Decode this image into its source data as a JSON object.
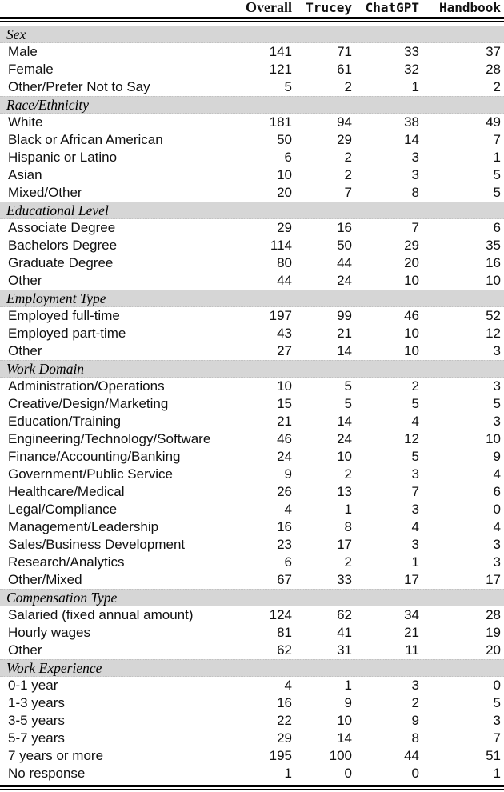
{
  "colors": {
    "band_background": "#d6d6d6",
    "rule_color": "#000000",
    "text_color": "#111111",
    "page_background": "#ffffff"
  },
  "table": {
    "header": {
      "empty_corner": "",
      "columns": [
        "Overall",
        "Trucey",
        "ChatGPT",
        "Handbook"
      ]
    },
    "sections": [
      {
        "label": "Sex",
        "rows": [
          {
            "label": "Male",
            "values": [
              "141",
              "71",
              "33",
              "37"
            ]
          },
          {
            "label": "Female",
            "values": [
              "121",
              "61",
              "32",
              "28"
            ]
          },
          {
            "label": "Other/Prefer Not to Say",
            "values": [
              "5",
              "2",
              "1",
              "2"
            ]
          }
        ]
      },
      {
        "label": "Race/Ethnicity",
        "rows": [
          {
            "label": "White",
            "values": [
              "181",
              "94",
              "38",
              "49"
            ]
          },
          {
            "label": "Black or African American",
            "values": [
              "50",
              "29",
              "14",
              "7"
            ]
          },
          {
            "label": "Hispanic or Latino",
            "values": [
              "6",
              "2",
              "3",
              "1"
            ]
          },
          {
            "label": "Asian",
            "values": [
              "10",
              "2",
              "3",
              "5"
            ]
          },
          {
            "label": "Mixed/Other",
            "values": [
              "20",
              "7",
              "8",
              "5"
            ]
          }
        ]
      },
      {
        "label": "Educational Level",
        "rows": [
          {
            "label": "Associate Degree",
            "values": [
              "29",
              "16",
              "7",
              "6"
            ]
          },
          {
            "label": "Bachelors Degree",
            "values": [
              "114",
              "50",
              "29",
              "35"
            ]
          },
          {
            "label": "Graduate Degree",
            "values": [
              "80",
              "44",
              "20",
              "16"
            ]
          },
          {
            "label": "Other",
            "values": [
              "44",
              "24",
              "10",
              "10"
            ]
          }
        ]
      },
      {
        "label": "Employment Type",
        "rows": [
          {
            "label": "Employed full-time",
            "values": [
              "197",
              "99",
              "46",
              "52"
            ]
          },
          {
            "label": "Employed part-time",
            "values": [
              "43",
              "21",
              "10",
              "12"
            ]
          },
          {
            "label": "Other",
            "values": [
              "27",
              "14",
              "10",
              "3"
            ]
          }
        ]
      },
      {
        "label": "Work Domain",
        "rows": [
          {
            "label": "Administration/Operations",
            "values": [
              "10",
              "5",
              "2",
              "3"
            ]
          },
          {
            "label": "Creative/Design/Marketing",
            "values": [
              "15",
              "5",
              "5",
              "5"
            ]
          },
          {
            "label": "Education/Training",
            "values": [
              "21",
              "14",
              "4",
              "3"
            ]
          },
          {
            "label": "Engineering/Technology/Software",
            "values": [
              "46",
              "24",
              "12",
              "10"
            ]
          },
          {
            "label": "Finance/Accounting/Banking",
            "values": [
              "24",
              "10",
              "5",
              "9"
            ]
          },
          {
            "label": "Government/Public Service",
            "values": [
              "9",
              "2",
              "3",
              "4"
            ]
          },
          {
            "label": "Healthcare/Medical",
            "values": [
              "26",
              "13",
              "7",
              "6"
            ]
          },
          {
            "label": "Legal/Compliance",
            "values": [
              "4",
              "1",
              "3",
              "0"
            ]
          },
          {
            "label": "Management/Leadership",
            "values": [
              "16",
              "8",
              "4",
              "4"
            ]
          },
          {
            "label": "Sales/Business Development",
            "values": [
              "23",
              "17",
              "3",
              "3"
            ]
          },
          {
            "label": "Research/Analytics",
            "values": [
              "6",
              "2",
              "1",
              "3"
            ]
          },
          {
            "label": "Other/Mixed",
            "values": [
              "67",
              "33",
              "17",
              "17"
            ]
          }
        ]
      },
      {
        "label": "Compensation Type",
        "rows": [
          {
            "label": "Salaried (fixed annual amount)",
            "values": [
              "124",
              "62",
              "34",
              "28"
            ]
          },
          {
            "label": "Hourly wages",
            "values": [
              "81",
              "41",
              "21",
              "19"
            ]
          },
          {
            "label": "Other",
            "values": [
              "62",
              "31",
              "11",
              "20"
            ]
          }
        ]
      },
      {
        "label": "Work Experience",
        "rows": [
          {
            "label": "0-1 year",
            "values": [
              "4",
              "1",
              "3",
              "0"
            ]
          },
          {
            "label": "1-3 years",
            "values": [
              "16",
              "9",
              "2",
              "5"
            ]
          },
          {
            "label": "3-5 years",
            "values": [
              "22",
              "10",
              "9",
              "3"
            ]
          },
          {
            "label": "5-7 years",
            "values": [
              "29",
              "14",
              "8",
              "7"
            ]
          },
          {
            "label": "7 years or more",
            "values": [
              "195",
              "100",
              "44",
              "51"
            ]
          },
          {
            "label": "No response",
            "values": [
              "1",
              "0",
              "0",
              "1"
            ]
          }
        ]
      }
    ]
  }
}
